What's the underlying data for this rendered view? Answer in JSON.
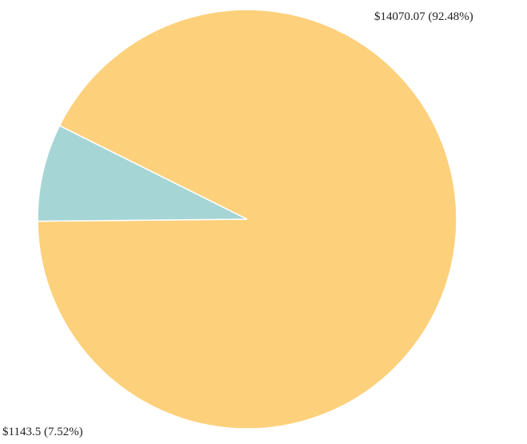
{
  "chart_data": {
    "type": "pie",
    "title": "",
    "slices": [
      {
        "label": "$14070.07 (92.48%)",
        "value": 14070.07,
        "percent": 92.48,
        "color": "#FDD07B"
      },
      {
        "label": "$1143.5 (7.52%)",
        "value": 1143.5,
        "percent": 7.52,
        "color": "#A6D5D5"
      }
    ],
    "legend": "none"
  }
}
